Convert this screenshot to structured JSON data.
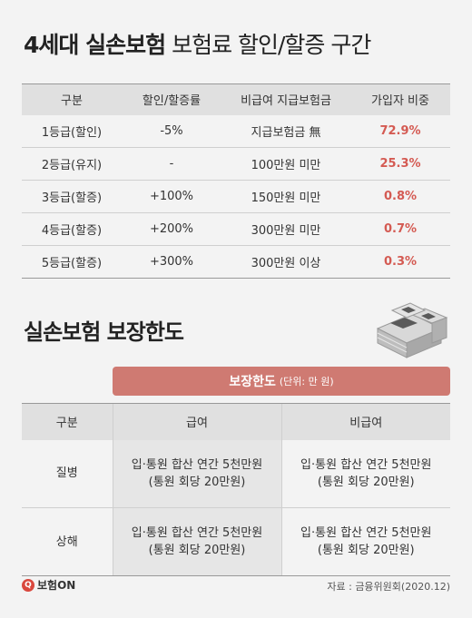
{
  "title1": {
    "bold": "4세대 실손보험",
    "light": "보험료 할인/할증 구간"
  },
  "table1": {
    "headers": [
      "구분",
      "할인/할증률",
      "비급여 지급보험금",
      "가입자 비중"
    ],
    "rows": [
      [
        "1등급(할인)",
        "-5%",
        "지급보험금 無",
        "72.9%"
      ],
      [
        "2등급(유지)",
        "-",
        "100만원 미만",
        "25.3%"
      ],
      [
        "3등급(할증)",
        "+100%",
        "150만원 미만",
        "0.8%"
      ],
      [
        "4등급(할증)",
        "+200%",
        "300만원 미만",
        "0.7%"
      ],
      [
        "5등급(할증)",
        "+300%",
        "300만원 이상",
        "0.3%"
      ]
    ]
  },
  "title2": "실손보험 보장한도",
  "banner": {
    "label": "보장한도",
    "unit": "(단위: 만 원)"
  },
  "table2": {
    "headers": [
      "구분",
      "급여",
      "비급여"
    ],
    "rows": [
      {
        "label": "질병",
        "covered_l1": "입·통원 합산 연간 5천만원",
        "covered_l2": "(통원 회당 20만원)",
        "non_l1": "입·통원 합산 연간 5천만원",
        "non_l2": "(통원 회당 20만원)"
      },
      {
        "label": "상해",
        "covered_l1": "입·통원 합산 연간 5천만원",
        "covered_l2": "(통원 회당 20만원)",
        "non_l1": "입·통원 합산 연간 5천만원",
        "non_l2": "(통원 회당 20만원)"
      }
    ]
  },
  "logo": {
    "mark": "Q",
    "text": "보험ON"
  },
  "source": "자료 : 금융위원회(2020.12)",
  "colors": {
    "accent": "#cf7a72",
    "pct": "#d45a52",
    "header_bg": "#e0e0e0"
  },
  "icons": {
    "money": "money-stack-icon"
  }
}
